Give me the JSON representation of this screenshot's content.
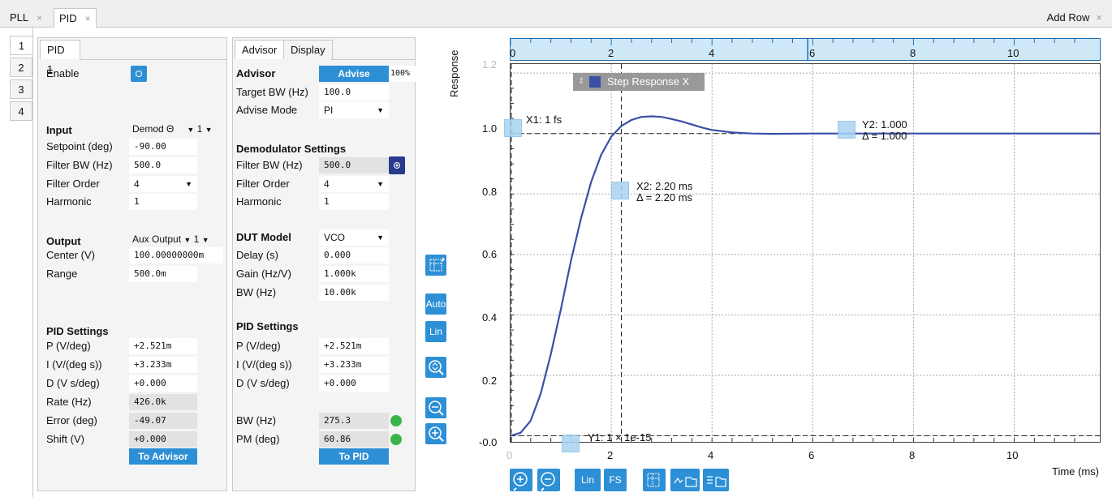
{
  "tabs": [
    {
      "label": "PLL",
      "close": "×"
    },
    {
      "label": "PID",
      "close": "×"
    }
  ],
  "add_row": {
    "label": "Add Row",
    "close": "×"
  },
  "side_tabs": [
    "1",
    "2",
    "3",
    "4"
  ],
  "pid_panel": {
    "tab": "PID 1",
    "enable_label": "Enable",
    "input": {
      "title": "Input",
      "source": "Demod Θ",
      "index": "1",
      "setpoint_label": "Setpoint (deg)",
      "setpoint": "-90.00",
      "filter_bw_label": "Filter BW (Hz)",
      "filter_bw": "500.0",
      "filter_order_label": "Filter Order",
      "filter_order": "4",
      "harmonic_label": "Harmonic",
      "harmonic": "1"
    },
    "output": {
      "title": "Output",
      "source": "Aux Output",
      "index": "1",
      "center_label": "Center (V)",
      "center": "100.00000000m",
      "range_label": "Range",
      "range": "500.0m"
    },
    "settings": {
      "title": "PID Settings",
      "p_label": "P (V/deg)",
      "p": "+2.521m",
      "i_label": "I (V/(deg s))",
      "i": "+3.233m",
      "d_label": "D (V s/deg)",
      "d": "+0.000",
      "rate_label": "Rate (Hz)",
      "rate": "426.0k",
      "error_label": "Error (deg)",
      "error": "-49.07",
      "shift_label": "Shift (V)",
      "shift": "+0.000"
    },
    "to_advisor": "To Advisor"
  },
  "advisor_panel": {
    "tabs": [
      "Advisor",
      "Display"
    ],
    "title": "Advisor",
    "advise_btn": "Advise",
    "progress": "100%",
    "target_bw_label": "Target BW (Hz)",
    "target_bw": "100.0",
    "advise_mode_label": "Advise Mode",
    "advise_mode": "PI",
    "demod_title": "Demodulator Settings",
    "filter_bw_label": "Filter BW (Hz)",
    "filter_bw": "500.0",
    "filter_order_label": "Filter Order",
    "filter_order": "4",
    "harmonic_label": "Harmonic",
    "harmonic": "1",
    "dut_title": "DUT Model",
    "dut_model": "VCO",
    "delay_label": "Delay (s)",
    "delay": "0.000",
    "gain_label": "Gain (Hz/V)",
    "gain": "1.000k",
    "bw_label": "BW (Hz)",
    "bw": "10.00k",
    "pid_title": "PID Settings",
    "p_label": "P (V/deg)",
    "p": "+2.521m",
    "i_label": "I (V/(deg s))",
    "i": "+3.233m",
    "d_label": "D (V s/deg)",
    "d": "+0.000",
    "res_bw_label": "BW (Hz)",
    "res_bw": "275.3",
    "pm_label": "PM (deg)",
    "pm": "60.86",
    "to_pid": "To PID"
  },
  "toolbar": {
    "auto": "Auto",
    "lin": "Lin"
  },
  "bottom_toolbar": {
    "lin": "Lin",
    "fs": "FS"
  },
  "plot": {
    "ylabel": "Response",
    "xlabel": "Time (ms)",
    "legend": "Step Response X",
    "cursors": {
      "x1": "X1: 1 fs",
      "x2": "X2: 2.20 ms",
      "x2_delta": "Δ = 2.20 ms",
      "y1": "Y1: 1 × 1e-15",
      "y2": "Y2: 1.000",
      "y2_delta": "Δ = 1.000"
    },
    "top_ticks": [
      "0",
      "2",
      "4",
      "6",
      "8",
      "10"
    ],
    "y_ticks": [
      "1.2",
      "1.0",
      "0.8",
      "0.6",
      "0.4",
      "0.2",
      "-0.0"
    ],
    "x_ticks": [
      "0",
      "2",
      "4",
      "6",
      "8",
      "10"
    ],
    "colors": {
      "trace": "#3a4fa6",
      "accent": "#2d8fd5",
      "led": "#3bb54a"
    }
  },
  "chart_data": {
    "type": "line",
    "xlabel": "Time (ms)",
    "ylabel": "Response",
    "xlim": [
      0,
      11.7
    ],
    "ylim": [
      -0.02,
      1.23
    ],
    "grid": true,
    "legend": "top-left",
    "series": [
      {
        "name": "Step Response X",
        "x": [
          0,
          0.2,
          0.4,
          0.6,
          0.8,
          1.0,
          1.2,
          1.4,
          1.6,
          1.8,
          2.0,
          2.2,
          2.4,
          2.6,
          2.8,
          3.0,
          3.2,
          3.4,
          3.6,
          3.8,
          4.0,
          4.4,
          4.8,
          5.2,
          6,
          8,
          10,
          11.7
        ],
        "y": [
          0,
          0.01,
          0.05,
          0.14,
          0.27,
          0.42,
          0.58,
          0.72,
          0.84,
          0.93,
          0.99,
          1.025,
          1.045,
          1.055,
          1.057,
          1.055,
          1.048,
          1.04,
          1.03,
          1.02,
          1.012,
          1.004,
          1.0,
          0.999,
          1.0,
          1.0,
          1.0,
          1.0
        ]
      }
    ]
  }
}
